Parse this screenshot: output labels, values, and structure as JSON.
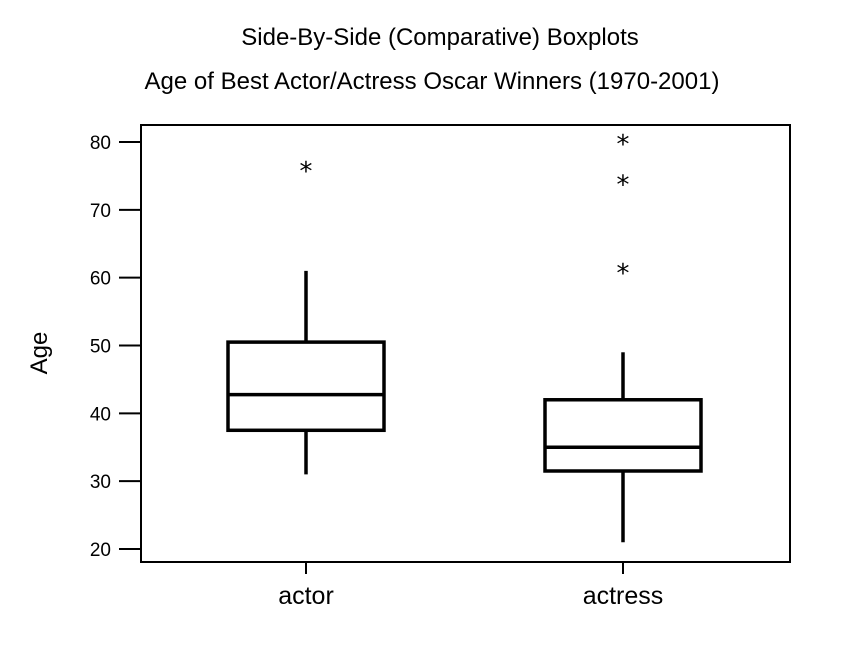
{
  "chart_data": {
    "type": "boxplot",
    "title": "Side-By-Side (Comparative) Boxplots",
    "subtitle": "Age of Best Actor/Actress Oscar Winners (1970-2001)",
    "xlabel": "",
    "ylabel": "Age",
    "ylim": [
      19.5,
      81.5
    ],
    "yticks": [
      20,
      30,
      40,
      50,
      60,
      70,
      80
    ],
    "grid": false,
    "outlier_marker": "*",
    "categories": [
      "actor",
      "actress"
    ],
    "series": [
      {
        "category": "actor",
        "whisker_low": 31,
        "q1": 37.5,
        "median": 42.75,
        "q3": 50.5,
        "whisker_high": 61,
        "outliers": [
          76
        ]
      },
      {
        "category": "actress",
        "whisker_low": 21,
        "q1": 31.5,
        "median": 35,
        "q3": 42,
        "whisker_high": 49,
        "outliers": [
          61,
          74,
          80
        ]
      }
    ]
  }
}
